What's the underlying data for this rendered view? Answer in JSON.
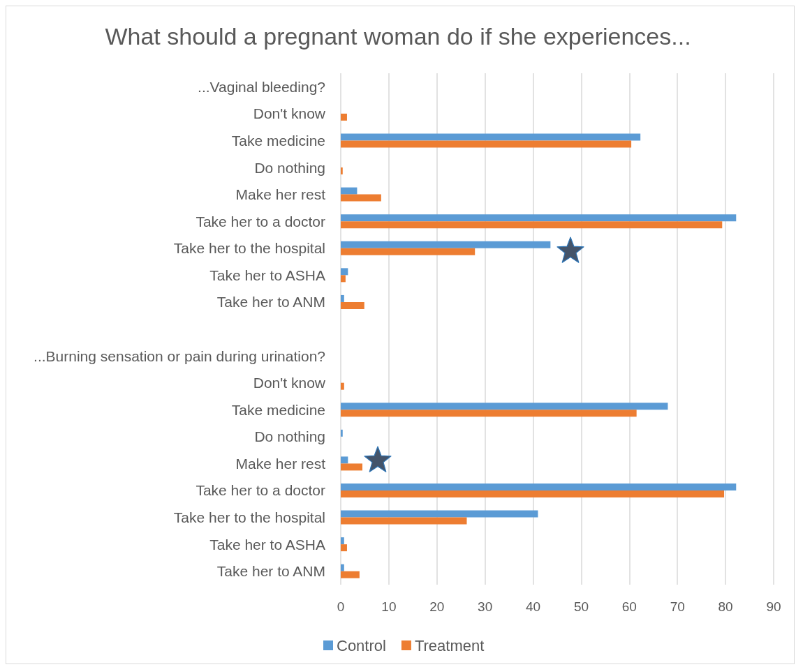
{
  "chart_data": {
    "type": "bar",
    "orientation": "horizontal",
    "title": "What should a pregnant woman do if she experiences...",
    "categories": [
      "...Vaginal bleeding?",
      "Don't know",
      "Take medicine",
      "Do nothing",
      "Make her rest",
      "Take her to a doctor",
      "Take her to the hospital",
      "Take her to ASHA",
      "Take her to ANM",
      null,
      "...Burning sensation or pain during urination?",
      "Don't know",
      "Take medicine",
      "Do nothing",
      "Make her rest",
      "Take her to a doctor",
      "Take her to the hospital",
      "Take her to ASHA",
      "Take her to ANM"
    ],
    "series": [
      {
        "name": "Control",
        "color": "#5b9bd5",
        "values": [
          null,
          null,
          62.3,
          null,
          3.4,
          82.2,
          43.6,
          1.5,
          0.7,
          null,
          null,
          null,
          68,
          0.4,
          1.5,
          82.2,
          41,
          0.7,
          0.7
        ]
      },
      {
        "name": "Treatment",
        "color": "#ed7d31",
        "values": [
          null,
          1.3,
          60.4,
          0.4,
          8.4,
          79.3,
          27.9,
          1,
          4.9,
          null,
          null,
          0.7,
          61.5,
          null,
          4.5,
          79.7,
          26.2,
          1.3,
          3.9
        ]
      }
    ],
    "xlim": [
      0,
      90
    ],
    "xticks": [
      0,
      10,
      20,
      30,
      40,
      50,
      60,
      70,
      80,
      90
    ],
    "grid": "x",
    "legend": "bottom"
  }
}
